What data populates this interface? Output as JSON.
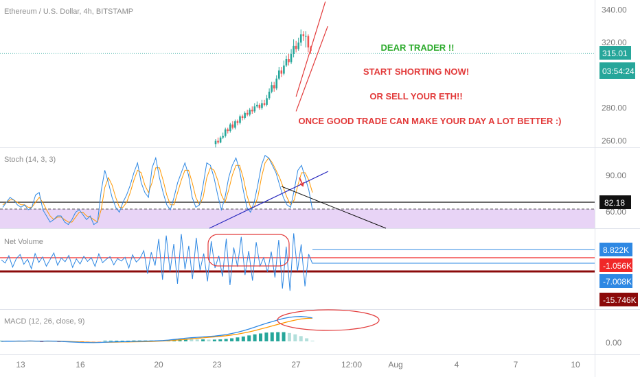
{
  "chart_data": {
    "type": "line",
    "title": "Ethereum / U.S. Dollar, 4h, BITSTAMP",
    "price_pane": {
      "y_ticks": [
        "340.00",
        "320.00",
        "300.00",
        "280.00",
        "260.00"
      ],
      "y_range": [
        256,
        346
      ],
      "current_price": "315.01",
      "countdown": "03:54:24",
      "candles": [
        [
          258,
          260,
          256,
          261
        ],
        [
          260,
          259,
          258,
          262
        ],
        [
          259,
          262,
          258.5,
          263
        ],
        [
          262,
          263,
          261,
          265
        ],
        [
          263,
          267,
          262,
          268
        ],
        [
          267,
          266,
          264.5,
          268
        ],
        [
          266,
          270,
          265,
          271
        ],
        [
          270,
          268,
          267,
          272
        ],
        [
          268,
          272,
          267,
          273
        ],
        [
          272,
          271,
          269.5,
          273
        ],
        [
          271,
          275,
          270,
          276
        ],
        [
          275,
          274,
          272.5,
          276
        ],
        [
          274,
          277,
          273,
          278
        ],
        [
          277,
          276,
          275,
          279
        ],
        [
          276,
          279,
          275,
          280
        ],
        [
          279,
          278,
          276.5,
          281
        ],
        [
          278,
          281,
          277,
          283
        ],
        [
          281,
          282,
          280,
          284
        ],
        [
          282,
          280,
          279,
          283
        ],
        [
          280,
          283,
          279,
          285
        ],
        [
          283,
          282,
          281,
          285
        ],
        [
          282,
          286,
          281,
          288
        ],
        [
          286,
          290,
          285,
          292
        ],
        [
          290,
          294,
          289,
          296
        ],
        [
          294,
          292,
          290,
          296
        ],
        [
          292,
          298,
          291,
          300
        ],
        [
          298,
          303,
          297,
          305
        ],
        [
          303,
          301,
          299,
          305
        ],
        [
          301,
          306,
          300,
          309
        ],
        [
          306,
          310,
          305,
          312
        ],
        [
          310,
          308,
          306,
          313
        ],
        [
          308,
          313,
          307,
          316
        ],
        [
          313,
          318,
          311,
          322
        ],
        [
          318,
          316,
          314,
          321
        ],
        [
          316,
          320,
          315,
          323
        ],
        [
          320,
          325,
          318,
          328
        ],
        [
          325,
          324,
          321,
          327
        ],
        [
          324,
          324,
          317,
          327
        ],
        [
          324,
          317,
          314,
          325
        ],
        [
          317,
          315,
          313,
          318
        ]
      ],
      "channel_upper": [
        [
          33,
          287
        ],
        [
          45,
          345
        ]
      ],
      "channel_lower": [
        [
          33,
          278
        ],
        [
          46,
          330
        ]
      ]
    },
    "annotations": [
      {
        "text": "DEAR TRADER !!",
        "color": "#2eab2e"
      },
      {
        "text": "START SHORTING NOW!",
        "color": "#e23a3a"
      },
      {
        "text": "OR SELL YOUR ETH!!",
        "color": "#e23a3a"
      },
      {
        "text": "ONCE GOOD TRADE CAN MAKE YOUR DAY A LOT BETTER :)",
        "color": "#e23a3a"
      }
    ],
    "stoch": {
      "title": "Stoch (14, 3, 3)",
      "y_ticks": [
        "90.00",
        "60.00"
      ],
      "y_range": [
        45,
        110
      ],
      "level_line": "82.18",
      "k": [
        62,
        66,
        70,
        68,
        64,
        62,
        64,
        60,
        62,
        72,
        74,
        60,
        55,
        50,
        52,
        55,
        55,
        50,
        48,
        52,
        58,
        60,
        56,
        52,
        55,
        48,
        50,
        75,
        92,
        82,
        70,
        62,
        58,
        66,
        72,
        80,
        90,
        98,
        82,
        74,
        70,
        94,
        102,
        86,
        74,
        64,
        60,
        70,
        82,
        90,
        98,
        88,
        70,
        62,
        64,
        80,
        98,
        96,
        86,
        72,
        60,
        70,
        86,
        96,
        102,
        92,
        76,
        62,
        58,
        66,
        80,
        96,
        104,
        102,
        96,
        90,
        80,
        70,
        64,
        62,
        76,
        92,
        96,
        86,
        76,
        60
      ],
      "d": [
        64,
        66,
        68,
        68,
        66,
        64,
        64,
        62,
        62,
        66,
        70,
        66,
        60,
        55,
        52,
        54,
        54,
        52,
        50,
        50,
        54,
        58,
        58,
        55,
        54,
        52,
        50,
        60,
        78,
        86,
        80,
        70,
        62,
        62,
        66,
        74,
        84,
        92,
        90,
        80,
        74,
        82,
        94,
        94,
        84,
        72,
        64,
        64,
        74,
        84,
        92,
        92,
        82,
        70,
        64,
        70,
        86,
        94,
        92,
        84,
        72,
        66,
        76,
        88,
        96,
        96,
        86,
        72,
        62,
        62,
        70,
        86,
        98,
        102,
        98,
        92,
        86,
        78,
        70,
        64,
        68,
        80,
        90,
        90,
        84,
        74
      ]
    },
    "net_volume": {
      "title": "Net Volume",
      "values": [
        0.2,
        -0.8,
        1.5,
        -2.1,
        0.6,
        1.9,
        -1.2,
        0.4,
        -2.6,
        2.2,
        -0.6,
        1.1,
        -1.8,
        0.3,
        2.4,
        -1.5,
        0.8,
        -0.4,
        1.6,
        -2.2,
        0.5,
        -1.1,
        1.3,
        -0.3,
        0.9,
        -1.9,
        2.1,
        -0.7,
        0.4,
        1.2,
        -1.4,
        0.6,
        -0.2,
        1.0,
        -2.4,
        1.8,
        -0.5,
        0.7,
        3.1,
        -4.2,
        2.6,
        -1.6,
        6.8,
        -6.1,
        7.9,
        -3.5,
        5.2,
        -7.4,
        8.4,
        -2.8,
        4.6,
        -5.9,
        7.2,
        -3.1,
        2.2,
        -6.6,
        6.1,
        -2.4,
        1.5,
        -5.1,
        6.9,
        -7.8,
        4.1,
        -2.0,
        7.5,
        -4.6,
        3.0,
        -6.4,
        5.8,
        -1.8,
        0.9,
        -3.6,
        2.8,
        -5.4,
        6.5,
        -8.9,
        4.4,
        -9.6,
        8.6,
        -3.3,
        5.1,
        -8.2,
        2.0,
        -1.0
      ],
      "tags": [
        {
          "label": "8.822K",
          "value": 8.822,
          "color": "#2e88e3"
        },
        {
          "label": "-1.056K",
          "value": -1.056,
          "color": "#f02828"
        },
        {
          "label": "-7.008K",
          "value": -7.008,
          "color": "#2e88e3"
        },
        {
          "label": "-15.746K",
          "value": -15.746,
          "color": "#8b0a0a"
        }
      ]
    },
    "macd": {
      "title": "MACD (12, 26, close, 9)",
      "y_tick": "0.00",
      "macd": [
        0.0,
        0.2,
        0.1,
        0.3,
        0.2,
        0.4,
        0.2,
        0.1,
        0.3,
        0.2,
        0.0,
        -0.2,
        -0.5,
        -0.8,
        -1.0,
        -1.1,
        -1.2,
        -1.0,
        -0.8,
        -0.6,
        -0.4,
        -0.3,
        -0.2,
        0.0,
        0.1,
        0.2,
        0.3,
        0.5,
        0.8,
        1.2,
        1.8,
        2.4,
        3.0,
        3.4,
        3.8,
        4.2,
        4.6,
        5.0,
        5.6,
        6.4,
        7.4,
        8.6,
        10.0,
        11.6,
        13.4,
        15.2,
        17.0,
        18.6,
        20.2,
        21.6,
        22.6,
        23.2,
        23.4,
        23.0,
        22.0
      ],
      "signal": [
        0.0,
        0.1,
        0.1,
        0.2,
        0.2,
        0.3,
        0.2,
        0.2,
        0.2,
        0.2,
        0.1,
        0.0,
        -0.2,
        -0.4,
        -0.6,
        -0.8,
        -0.9,
        -0.9,
        -0.9,
        -0.8,
        -0.7,
        -0.6,
        -0.5,
        -0.4,
        -0.3,
        -0.2,
        -0.1,
        0.1,
        0.3,
        0.6,
        1.0,
        1.4,
        1.9,
        2.4,
        2.9,
        3.3,
        3.8,
        4.2,
        4.7,
        5.3,
        6.0,
        6.8,
        7.8,
        8.9,
        10.2,
        11.6,
        13.0,
        14.5,
        16.0,
        17.4,
        18.8,
        20.0,
        21.0,
        21.6,
        21.8
      ]
    },
    "x_ticks": [
      "13",
      "16",
      "20",
      "23",
      "27",
      "12:00",
      "Aug",
      "4",
      "7",
      "10"
    ]
  }
}
